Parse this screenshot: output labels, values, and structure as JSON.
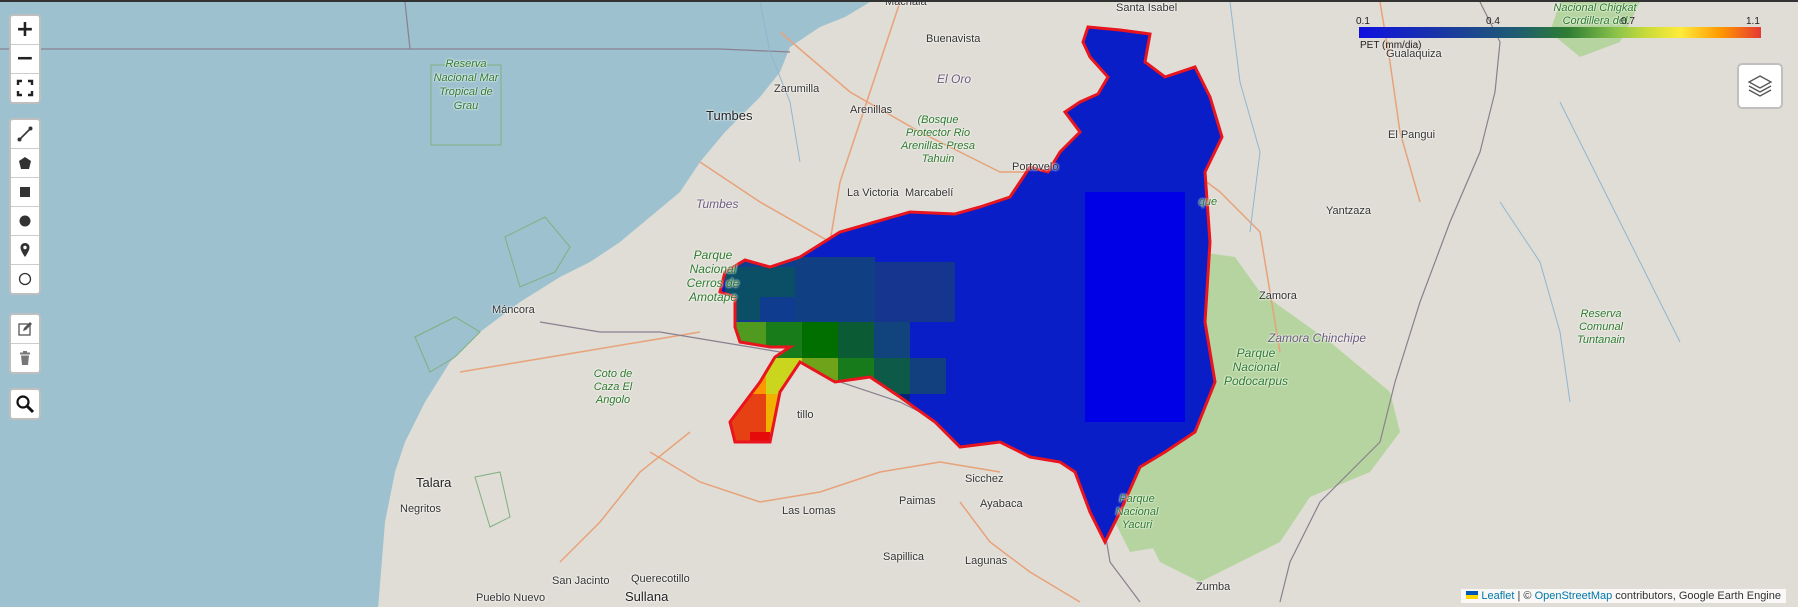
{
  "map": {
    "places": [
      {
        "id": "machala",
        "text": "Machala",
        "cls": ""
      },
      {
        "id": "santa-isabel",
        "text": "Santa Isabel",
        "cls": ""
      },
      {
        "id": "buenavista",
        "text": "Buenavista",
        "cls": ""
      },
      {
        "id": "el-oro",
        "text": "El Oro",
        "cls": "region"
      },
      {
        "id": "zarumilla",
        "text": "Zarumilla",
        "cls": ""
      },
      {
        "id": "tumbes-city",
        "text": "Tumbes",
        "cls": "big"
      },
      {
        "id": "arenillas",
        "text": "Arenillas",
        "cls": ""
      },
      {
        "id": "portovelo",
        "text": "Portovelo",
        "cls": ""
      },
      {
        "id": "la-victoria",
        "text": "La Victoria",
        "cls": ""
      },
      {
        "id": "marcabeli",
        "text": "Marcabelí",
        "cls": ""
      },
      {
        "id": "tumbes-region",
        "text": "Tumbes",
        "cls": "region"
      },
      {
        "id": "mancora",
        "text": "Máncora",
        "cls": ""
      },
      {
        "id": "talara",
        "text": "Talara",
        "cls": "big"
      },
      {
        "id": "negritos",
        "text": "Negritos",
        "cls": ""
      },
      {
        "id": "las-lomas",
        "text": "Las Lomas",
        "cls": ""
      },
      {
        "id": "sicchez",
        "text": "Sicchez",
        "cls": ""
      },
      {
        "id": "paimas",
        "text": "Paimas",
        "cls": ""
      },
      {
        "id": "ayabaca",
        "text": "Ayabaca",
        "cls": ""
      },
      {
        "id": "sapillica",
        "text": "Sapillica",
        "cls": ""
      },
      {
        "id": "lagunas",
        "text": "Lagunas",
        "cls": ""
      },
      {
        "id": "querecotillo",
        "text": "Querecotillo",
        "cls": ""
      },
      {
        "id": "san-jacinto",
        "text": "San Jacinto",
        "cls": ""
      },
      {
        "id": "sullana",
        "text": "Sullana",
        "cls": "big"
      },
      {
        "id": "pueblo-nuevo",
        "text": "Pueblo Nuevo",
        "cls": ""
      },
      {
        "id": "zumba",
        "text": "Zumba",
        "cls": ""
      },
      {
        "id": "zamora",
        "text": "Zamora",
        "cls": ""
      },
      {
        "id": "yantzaza",
        "text": "Yantzaza",
        "cls": ""
      },
      {
        "id": "el-pangui",
        "text": "El Pangui",
        "cls": ""
      },
      {
        "id": "gualaquiza",
        "text": "Gualaquiza",
        "cls": ""
      },
      {
        "id": "zamora-chinchipe",
        "text": "Zamora Chinchipe",
        "cls": "region"
      },
      {
        "id": "tillo",
        "text": "tillo",
        "cls": ""
      }
    ],
    "parks": [
      {
        "id": "mar-tropical",
        "text": "Reserva Nacional Mar Tropical de Grau"
      },
      {
        "id": "bosque-protector",
        "text": "(Bosque Protector Rio Arenillas Presa Tahuin"
      },
      {
        "id": "cerros-amotape",
        "text": "Parque Nacional Cerros de Amotape"
      },
      {
        "id": "coto-caza",
        "text": "Coto de Caza El Angolo"
      },
      {
        "id": "podocarpus",
        "text": "Parque Nacional Podocarpus"
      },
      {
        "id": "cordillera-condor",
        "text": "Nacional Chigkat Cordillera del Cóndor"
      },
      {
        "id": "reserva-tuntanain",
        "text": "Reserva Comunal Tuntanain"
      },
      {
        "id": "yacuri",
        "text": "Parque Nacional Yacuri"
      },
      {
        "id": "que-fragment",
        "text": "que"
      }
    ]
  },
  "controls": {
    "zoom_in": "+",
    "zoom_out": "−",
    "draw_tools": [
      "polyline-icon",
      "polygon-icon",
      "rectangle-icon",
      "circle-marker-icon",
      "marker-icon",
      "circle-icon"
    ],
    "edit_tools": [
      "edit-icon",
      "delete-icon"
    ],
    "search": "search-icon"
  },
  "legend": {
    "title": "PET (mm/dia)",
    "ticks": [
      "0.1",
      "0.4",
      "0.7",
      "1.1"
    ],
    "min": 0.1,
    "max": 1.1,
    "palette": [
      "#1010e0",
      "#1a3aa0",
      "#1f5e6e",
      "#2e7d32",
      "#8bc34a",
      "#cddc39",
      "#ffeb3b",
      "#ff9800",
      "#e53935"
    ]
  },
  "attribution": {
    "leaflet": "Leaflet",
    "separator": "| ©",
    "osm": "OpenStreetMap",
    "rest": "contributors, Google Earth Engine"
  },
  "colors": {
    "sea": "#9dc1cf",
    "land": "#e0ddd6",
    "forest": "#b5d4a0",
    "boundary": "#e8141e",
    "road": "#e8a27a"
  }
}
